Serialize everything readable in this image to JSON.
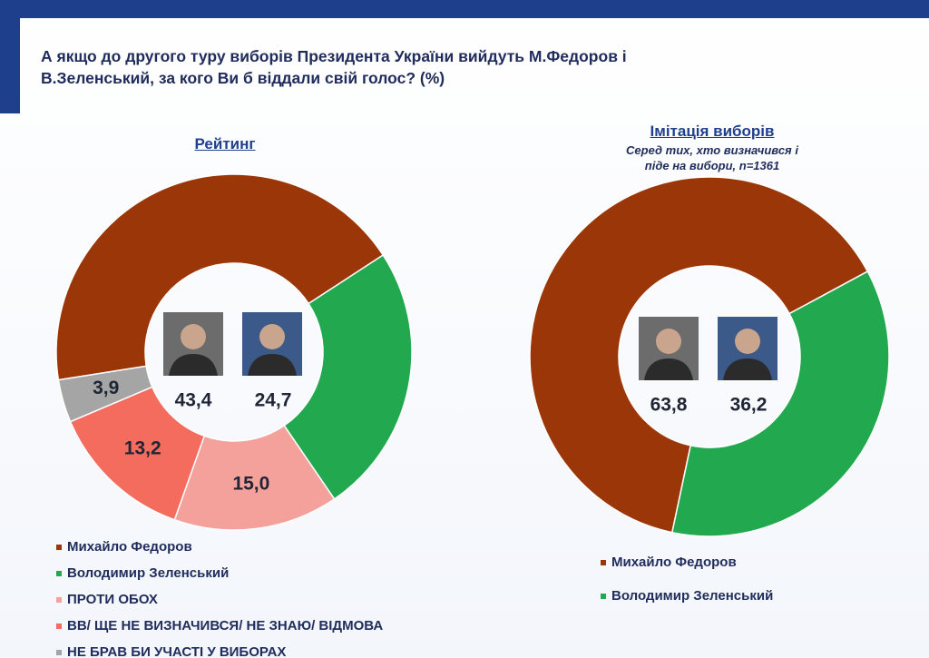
{
  "title": "А якщо до другого туру виборів Президента України вийдуть М.Федоров і В.Зеленський, за кого Ви б віддали свій голос? (%)",
  "chart_data": [
    {
      "type": "donut",
      "title": "Рейтинг",
      "categories": [
        "Михайло Федоров",
        "Володимир Зеленський",
        "ПРОТИ ОБОХ",
        "ВВ/ ЩЕ НЕ ВИЗНАЧИВСЯ/ НЕ ЗНАЮ/ ВІДМОВА",
        "НЕ БРАВ БИ УЧАСТІ У ВИБОРАХ"
      ],
      "values": [
        43.4,
        24.7,
        15.0,
        13.2,
        3.9
      ],
      "value_labels": [
        "43,4",
        "24,7",
        "15,0",
        "13,2",
        "3,9"
      ],
      "colors": [
        "#9a3608",
        "#22a94f",
        "#f5a19b",
        "#f36c5e",
        "#a5a5a5"
      ]
    },
    {
      "type": "donut",
      "title": "Імітація виборів",
      "subtitle": "Серед тих, хто визначився і піде на вибори, n=1361",
      "categories": [
        "Михайло Федоров",
        "Володимир Зеленський"
      ],
      "values": [
        63.8,
        36.2
      ],
      "value_labels": [
        "63,8",
        "36,2"
      ],
      "colors": [
        "#9a3608",
        "#22a94f"
      ]
    }
  ]
}
